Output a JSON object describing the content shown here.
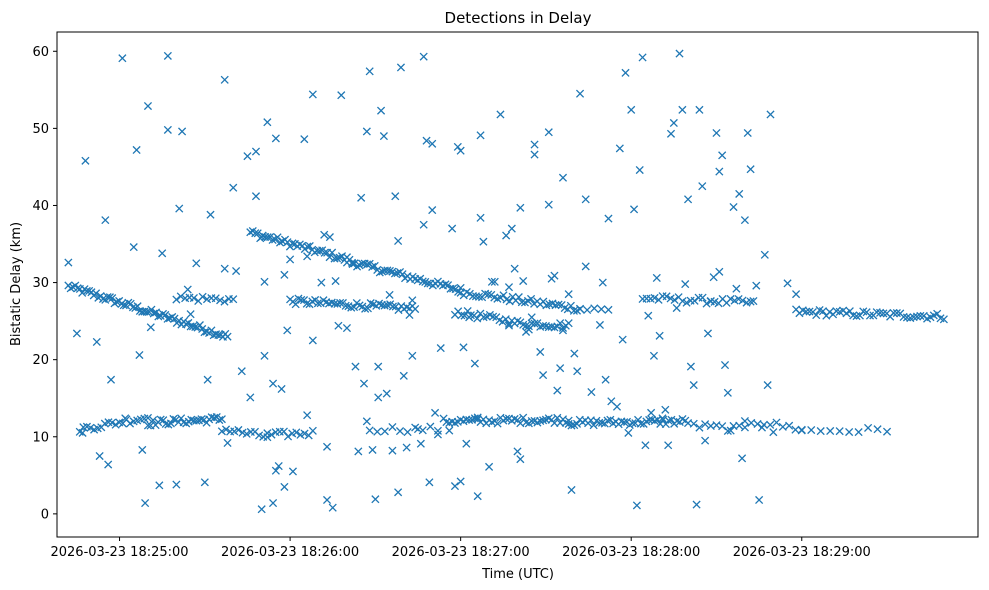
{
  "chart_data": {
    "type": "scatter",
    "title": "Detections in Delay",
    "xlabel": "Time (UTC)",
    "ylabel": "Bistatic Delay (km)",
    "x_units": "seconds since 2026-03-23 18:24:00",
    "xlim": [
      38,
      362
    ],
    "ylim": [
      -3,
      62.5
    ],
    "xticks": [
      {
        "value": 60,
        "label": "2026-03-23 18:25:00"
      },
      {
        "value": 120,
        "label": "2026-03-23 18:26:00"
      },
      {
        "value": 180,
        "label": "2026-03-23 18:27:00"
      },
      {
        "value": 240,
        "label": "2026-03-23 18:28:00"
      },
      {
        "value": 300,
        "label": "2026-03-23 18:29:00"
      }
    ],
    "yticks": [
      {
        "value": 0,
        "label": "0"
      },
      {
        "value": 10,
        "label": "10"
      },
      {
        "value": 20,
        "label": "20"
      },
      {
        "value": 30,
        "label": "30"
      },
      {
        "value": 40,
        "label": "40"
      },
      {
        "value": 50,
        "label": "50"
      },
      {
        "value": 60,
        "label": "60"
      }
    ],
    "marker": "x",
    "color": "#1f77b4",
    "grid": false,
    "series": [
      {
        "name": "track-decreasing-upper",
        "segments": [
          {
            "x_start": 42,
            "x_end": 98,
            "y_start": 29.5,
            "y_end": 23.0,
            "count": 70
          },
          {
            "x_start": 106,
            "x_end": 140,
            "y_start": 36.5,
            "y_end": 33.0,
            "count": 40
          },
          {
            "x_start": 140,
            "x_end": 180,
            "y_start": 32.8,
            "y_end": 29.0,
            "count": 46
          },
          {
            "x_start": 180,
            "x_end": 222,
            "y_start": 28.8,
            "y_end": 26.6,
            "count": 40
          },
          {
            "x_start": 222,
            "x_end": 232,
            "y_start": 26.6,
            "y_end": 26.4,
            "count": 5
          },
          {
            "x_start": 244,
            "x_end": 282,
            "y_start": 28.0,
            "y_end": 27.4,
            "count": 28
          },
          {
            "x_start": 298,
            "x_end": 350,
            "y_start": 26.2,
            "y_end": 25.6,
            "count": 45
          }
        ]
      },
      {
        "name": "track-midlevel",
        "segments": [
          {
            "x_start": 80,
            "x_end": 100,
            "y_start": 28.0,
            "y_end": 27.8,
            "count": 14
          },
          {
            "x_start": 120,
            "x_end": 164,
            "y_start": 27.6,
            "y_end": 26.6,
            "count": 46
          },
          {
            "x_start": 178,
            "x_end": 197,
            "y_start": 26.2,
            "y_end": 25.0,
            "count": 18
          },
          {
            "x_start": 197,
            "x_end": 218,
            "y_start": 24.8,
            "y_end": 24.4,
            "count": 22
          }
        ]
      },
      {
        "name": "track-lower",
        "segments": [
          {
            "x_start": 46,
            "x_end": 70,
            "y_start": 11.0,
            "y_end": 12.5,
            "count": 20
          },
          {
            "x_start": 70,
            "x_end": 96,
            "y_start": 11.8,
            "y_end": 12.3,
            "count": 30
          },
          {
            "x_start": 96,
            "x_end": 112,
            "y_start": 11.0,
            "y_end": 10.0,
            "count": 12
          },
          {
            "x_start": 112,
            "x_end": 128,
            "y_start": 10.2,
            "y_end": 10.5,
            "count": 12
          },
          {
            "x_start": 148,
            "x_end": 172,
            "y_start": 11.0,
            "y_end": 11.0,
            "count": 10
          },
          {
            "x_start": 174,
            "x_end": 218,
            "y_start": 12.0,
            "y_end": 12.2,
            "count": 45
          },
          {
            "x_start": 218,
            "x_end": 260,
            "y_start": 11.8,
            "y_end": 12.0,
            "count": 44
          },
          {
            "x_start": 262,
            "x_end": 280,
            "y_start": 11.4,
            "y_end": 11.0,
            "count": 10
          },
          {
            "x_start": 280,
            "x_end": 300,
            "y_start": 12.2,
            "y_end": 11.0,
            "count": 10
          },
          {
            "x_start": 300,
            "x_end": 330,
            "y_start": 10.8,
            "y_end": 10.8,
            "count": 10
          }
        ]
      },
      {
        "name": "scattered-detections",
        "points": [
          [
            42,
            32.6
          ],
          [
            45,
            23.4
          ],
          [
            47,
            10.5
          ],
          [
            48,
            45.8
          ],
          [
            52,
            22.3
          ],
          [
            53,
            7.5
          ],
          [
            55,
            38.1
          ],
          [
            56,
            6.4
          ],
          [
            57,
            17.4
          ],
          [
            61,
            59.1
          ],
          [
            62,
            12.4
          ],
          [
            65,
            34.6
          ],
          [
            66,
            47.2
          ],
          [
            67,
            20.6
          ],
          [
            68,
            8.3
          ],
          [
            69,
            1.4
          ],
          [
            70,
            52.9
          ],
          [
            71,
            24.2
          ],
          [
            74,
            3.7
          ],
          [
            75,
            33.8
          ],
          [
            77,
            59.4
          ],
          [
            77,
            49.8
          ],
          [
            80,
            3.8
          ],
          [
            81,
            39.6
          ],
          [
            82,
            49.6
          ],
          [
            84,
            29.1
          ],
          [
            85,
            25.9
          ],
          [
            87,
            32.5
          ],
          [
            90,
            4.1
          ],
          [
            91,
            17.4
          ],
          [
            92,
            38.8
          ],
          [
            97,
            56.3
          ],
          [
            97,
            31.8
          ],
          [
            98,
            9.2
          ],
          [
            100,
            42.3
          ],
          [
            101,
            31.5
          ],
          [
            103,
            18.5
          ],
          [
            105,
            46.4
          ],
          [
            106,
            15.1
          ],
          [
            108,
            47.0
          ],
          [
            108,
            41.2
          ],
          [
            110,
            35.9
          ],
          [
            110,
            0.6
          ],
          [
            111,
            20.5
          ],
          [
            111,
            30.1
          ],
          [
            112,
            50.8
          ],
          [
            114,
            1.4
          ],
          [
            114,
            16.9
          ],
          [
            115,
            48.7
          ],
          [
            115,
            5.6
          ],
          [
            116,
            6.2
          ],
          [
            117,
            16.2
          ],
          [
            118,
            31.0
          ],
          [
            118,
            3.5
          ],
          [
            119,
            23.8
          ],
          [
            120,
            33.0
          ],
          [
            121,
            5.5
          ],
          [
            125,
            48.6
          ],
          [
            126,
            33.4
          ],
          [
            126,
            12.8
          ],
          [
            128,
            54.4
          ],
          [
            128,
            22.5
          ],
          [
            131,
            30.0
          ],
          [
            132,
            36.2
          ],
          [
            133,
            8.7
          ],
          [
            133,
            1.8
          ],
          [
            134,
            35.9
          ],
          [
            135,
            0.8
          ],
          [
            136,
            30.2
          ],
          [
            137,
            24.4
          ],
          [
            138,
            54.3
          ],
          [
            140,
            24.1
          ],
          [
            142,
            32.4
          ],
          [
            143,
            19.1
          ],
          [
            144,
            8.1
          ],
          [
            145,
            41.0
          ],
          [
            146,
            16.9
          ],
          [
            147,
            49.6
          ],
          [
            147,
            12.0
          ],
          [
            148,
            57.4
          ],
          [
            149,
            8.3
          ],
          [
            150,
            1.9
          ],
          [
            151,
            15.1
          ],
          [
            151,
            19.1
          ],
          [
            152,
            52.3
          ],
          [
            153,
            49.0
          ],
          [
            154,
            15.6
          ],
          [
            155,
            28.4
          ],
          [
            156,
            8.2
          ],
          [
            157,
            41.2
          ],
          [
            158,
            35.4
          ],
          [
            158,
            2.8
          ],
          [
            159,
            57.9
          ],
          [
            160,
            17.9
          ],
          [
            161,
            8.6
          ],
          [
            162,
            25.8
          ],
          [
            163,
            27.7
          ],
          [
            163,
            20.5
          ],
          [
            165,
            11.0
          ],
          [
            166,
            9.1
          ],
          [
            167,
            59.3
          ],
          [
            167,
            37.5
          ],
          [
            168,
            48.4
          ],
          [
            169,
            4.1
          ],
          [
            170,
            39.4
          ],
          [
            170,
            48.0
          ],
          [
            171,
            13.1
          ],
          [
            172,
            10.3
          ],
          [
            173,
            21.5
          ],
          [
            176,
            10.8
          ],
          [
            177,
            37.0
          ],
          [
            178,
            3.6
          ],
          [
            179,
            47.6
          ],
          [
            180,
            47.1
          ],
          [
            180,
            4.2
          ],
          [
            181,
            21.6
          ],
          [
            182,
            9.1
          ],
          [
            183,
            25.5
          ],
          [
            185,
            19.5
          ],
          [
            186,
            12.5
          ],
          [
            186,
            2.3
          ],
          [
            187,
            38.4
          ],
          [
            187,
            49.1
          ],
          [
            188,
            35.3
          ],
          [
            190,
            6.1
          ],
          [
            191,
            30.1
          ],
          [
            192,
            30.1
          ],
          [
            194,
            51.8
          ],
          [
            196,
            36.1
          ],
          [
            197,
            29.4
          ],
          [
            198,
            37.0
          ],
          [
            199,
            31.8
          ],
          [
            200,
            8.1
          ],
          [
            201,
            7.1
          ],
          [
            201,
            39.7
          ],
          [
            202,
            30.2
          ],
          [
            203,
            23.6
          ],
          [
            204,
            23.9
          ],
          [
            205,
            25.5
          ],
          [
            206,
            47.9
          ],
          [
            206,
            46.6
          ],
          [
            208,
            21.0
          ],
          [
            209,
            18.0
          ],
          [
            211,
            49.5
          ],
          [
            211,
            40.1
          ],
          [
            212,
            30.5
          ],
          [
            213,
            30.9
          ],
          [
            214,
            16.0
          ],
          [
            215,
            18.9
          ],
          [
            216,
            23.8
          ],
          [
            216,
            43.6
          ],
          [
            218,
            28.5
          ],
          [
            219,
            3.1
          ],
          [
            220,
            20.8
          ],
          [
            221,
            18.5
          ],
          [
            222,
            54.5
          ],
          [
            224,
            40.8
          ],
          [
            224,
            32.1
          ],
          [
            226,
            15.8
          ],
          [
            229,
            24.5
          ],
          [
            230,
            30.0
          ],
          [
            231,
            17.4
          ],
          [
            232,
            38.3
          ],
          [
            233,
            14.6
          ],
          [
            235,
            13.9
          ],
          [
            236,
            47.4
          ],
          [
            237,
            22.6
          ],
          [
            238,
            57.2
          ],
          [
            239,
            10.5
          ],
          [
            240,
            52.4
          ],
          [
            241,
            39.5
          ],
          [
            242,
            1.1
          ],
          [
            243,
            44.6
          ],
          [
            244,
            59.2
          ],
          [
            245,
            8.9
          ],
          [
            246,
            25.7
          ],
          [
            247,
            13.1
          ],
          [
            248,
            20.5
          ],
          [
            249,
            30.6
          ],
          [
            250,
            23.1
          ],
          [
            251,
            12.4
          ],
          [
            252,
            13.5
          ],
          [
            253,
            8.9
          ],
          [
            254,
            49.3
          ],
          [
            255,
            50.7
          ],
          [
            256,
            26.7
          ],
          [
            257,
            59.7
          ],
          [
            258,
            52.4
          ],
          [
            259,
            29.8
          ],
          [
            260,
            40.8
          ],
          [
            261,
            19.1
          ],
          [
            262,
            16.7
          ],
          [
            263,
            1.2
          ],
          [
            264,
            52.4
          ],
          [
            265,
            42.5
          ],
          [
            266,
            9.5
          ],
          [
            267,
            23.4
          ],
          [
            268,
            27.6
          ],
          [
            269,
            30.7
          ],
          [
            270,
            49.4
          ],
          [
            271,
            31.4
          ],
          [
            271,
            44.4
          ],
          [
            272,
            46.5
          ],
          [
            273,
            19.3
          ],
          [
            274,
            15.7
          ],
          [
            275,
            10.8
          ],
          [
            276,
            39.8
          ],
          [
            277,
            29.2
          ],
          [
            278,
            41.5
          ],
          [
            279,
            7.2
          ],
          [
            280,
            38.1
          ],
          [
            281,
            49.4
          ],
          [
            282,
            44.7
          ],
          [
            283,
            27.6
          ],
          [
            284,
            29.6
          ],
          [
            285,
            1.8
          ],
          [
            286,
            11.2
          ],
          [
            287,
            33.6
          ],
          [
            288,
            16.7
          ],
          [
            289,
            51.8
          ],
          [
            290,
            10.6
          ],
          [
            295,
            29.9
          ],
          [
            298,
            28.5
          ]
        ]
      }
    ]
  }
}
